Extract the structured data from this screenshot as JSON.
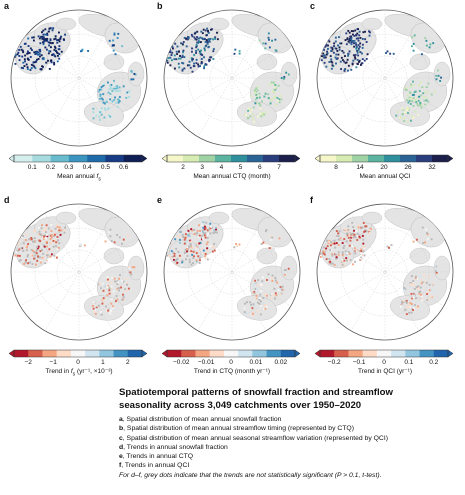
{
  "panels": [
    {
      "id": "a",
      "label": "a",
      "style": "fs"
    },
    {
      "id": "b",
      "label": "b",
      "style": "ctq"
    },
    {
      "id": "c",
      "label": "c",
      "style": "qci"
    },
    {
      "id": "d",
      "label": "d",
      "style": "trend"
    },
    {
      "id": "e",
      "label": "e",
      "style": "trend"
    },
    {
      "id": "f",
      "label": "f",
      "style": "trend"
    }
  ],
  "colorbars": [
    {
      "panel": "a",
      "ticks": [
        "0.1",
        "0.2",
        "0.3",
        "0.4",
        "0.5",
        "0.6"
      ],
      "label_main": "Mean annual ",
      "label_symbol": "f",
      "label_sub": "s",
      "label_rest": "",
      "colors": [
        "#d6eeee",
        "#a7dbe0",
        "#68bccd",
        "#3b95bf",
        "#1f6aa9",
        "#173c85",
        "#0f1e55"
      ]
    },
    {
      "panel": "b",
      "ticks": [
        "2",
        "3",
        "4",
        "5",
        "6",
        "7"
      ],
      "label_main": "Mean annual CTQ (month)",
      "label_symbol": "",
      "label_sub": "",
      "label_rest": "",
      "colors": [
        "#f6f7c9",
        "#d7ecb3",
        "#9fd3a6",
        "#5bb4a0",
        "#2f8f9d",
        "#2a6396",
        "#2a3d7c",
        "#1c1f4c"
      ]
    },
    {
      "panel": "c",
      "ticks": [
        "8",
        "14",
        "20",
        "26",
        "32"
      ],
      "label_main": "Mean annual QCI",
      "label_symbol": "",
      "label_sub": "",
      "label_rest": "",
      "colors": [
        "#f6f7c9",
        "#d7ecb3",
        "#9fd3a6",
        "#5bb4a0",
        "#2f8f9d",
        "#2a6396",
        "#2a3d7c",
        "#1c1f4c"
      ]
    },
    {
      "panel": "d",
      "ticks": [
        "−2",
        "−1",
        "0",
        "1",
        "2"
      ],
      "label_main": "Trend in ",
      "label_symbol": "f",
      "label_sub": "s",
      "label_rest": " (yr⁻¹, ×10⁻³)",
      "colors": [
        "#b2182b",
        "#d6604d",
        "#f4a582",
        "#fddbc7",
        "#f7f7f7",
        "#d1e5f0",
        "#92c5de",
        "#4393c3",
        "#2166ac"
      ]
    },
    {
      "panel": "e",
      "ticks": [
        "−0.02",
        "−0.01",
        "0",
        "0.01",
        "0.02"
      ],
      "label_main": "Trend in CTQ (month yr⁻¹)",
      "label_symbol": "",
      "label_sub": "",
      "label_rest": "",
      "colors": [
        "#b2182b",
        "#d6604d",
        "#f4a582",
        "#fddbc7",
        "#f7f7f7",
        "#d1e5f0",
        "#92c5de",
        "#4393c3",
        "#2166ac"
      ]
    },
    {
      "panel": "f",
      "ticks": [
        "−0.2",
        "−0.1",
        "0",
        "0.1",
        "0.2"
      ],
      "label_main": "Trend in QCI (yr⁻¹)",
      "label_symbol": "",
      "label_sub": "",
      "label_rest": "",
      "colors": [
        "#b2182b",
        "#d6604d",
        "#f4a582",
        "#fddbc7",
        "#f7f7f7",
        "#d1e5f0",
        "#92c5de",
        "#4393c3",
        "#2166ac"
      ]
    }
  ],
  "caption": {
    "title_line1": "Spatiotemporal patterns of snowfall fraction and streamflow",
    "title_line2": "seasonality across 3,049 catchments over 1950–2020",
    "items": [
      {
        "letter": "a",
        "text": ", Spatial distribution of mean annual snowfall fraction"
      },
      {
        "letter": "b",
        "text": ", Spatial distribution of mean annual streamflow timing (represented by CTQ)"
      },
      {
        "letter": "c",
        "text": ", Spatial distribution of mean annual seasonal streamflow variation (represented by QCI)"
      },
      {
        "letter": "d",
        "text": ", Trends in annual snowfall fraction"
      },
      {
        "letter": "e",
        "text": ", Trends in annual CTQ"
      },
      {
        "letter": "f",
        "text": ", Trends in annual QCI"
      }
    ],
    "note": "For d–f, grey dots indicate that the trends are not statistically significant (P > 0.1, t-test)."
  }
}
